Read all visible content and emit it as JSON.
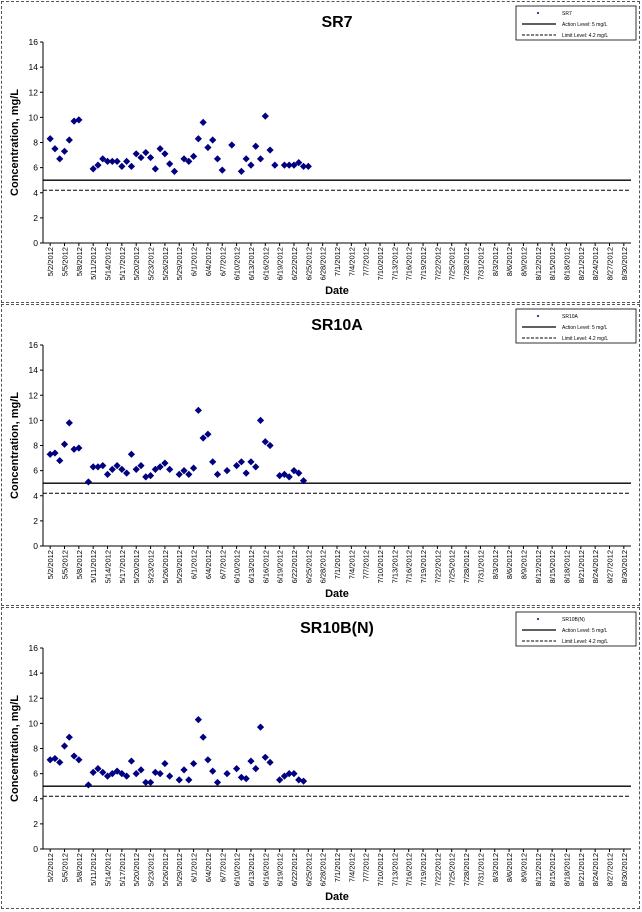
{
  "chart_data": [
    {
      "type": "scatter",
      "title": "SR7",
      "xlabel": "Date",
      "ylabel": "Concentration, mg/L",
      "ylim": [
        0,
        16
      ],
      "yticks": [
        "0",
        "2",
        "4",
        "6",
        "8",
        "10",
        "12",
        "14",
        "16"
      ],
      "legend": [
        "SR7",
        "Action Level: 5 mg/L",
        "Limit Level: 4.2 mg/L"
      ],
      "legend_position": "top-right",
      "x_dates": [
        "5/2/2012",
        "5/5/2012",
        "5/8/2012",
        "5/11/2012",
        "5/14/2012",
        "5/17/2012",
        "5/20/2012",
        "5/23/2012",
        "5/26/2012",
        "5/29/2012",
        "6/1/2012",
        "6/4/2012",
        "6/7/2012",
        "6/10/2012",
        "6/13/2012",
        "6/16/2012",
        "6/19/2012",
        "6/22/2012",
        "6/25/2012",
        "6/28/2012",
        "7/1/2012",
        "7/4/2012",
        "7/7/2012",
        "7/10/2012",
        "7/13/2012",
        "7/16/2012",
        "7/19/2012",
        "7/22/2012",
        "7/25/2012",
        "7/28/2012",
        "7/31/2012",
        "8/3/2012",
        "8/6/2012",
        "8/9/2012",
        "8/12/2012",
        "8/15/2012",
        "8/18/2012",
        "8/21/2012",
        "8/24/2012",
        "8/27/2012",
        "8/30/2012"
      ],
      "action_level": 5,
      "limit_level": 4.2,
      "points": [
        [
          "5/2/2012",
          8.3
        ],
        [
          "5/3/2012",
          7.5
        ],
        [
          "5/4/2012",
          6.7
        ],
        [
          "5/5/2012",
          7.3
        ],
        [
          "5/6/2012",
          8.2
        ],
        [
          "5/7/2012",
          9.7
        ],
        [
          "5/8/2012",
          9.8
        ],
        [
          "5/11/2012",
          5.9
        ],
        [
          "5/12/2012",
          6.2
        ],
        [
          "5/13/2012",
          6.7
        ],
        [
          "5/14/2012",
          6.5
        ],
        [
          "5/15/2012",
          6.5
        ],
        [
          "5/16/2012",
          6.5
        ],
        [
          "5/17/2012",
          6.1
        ],
        [
          "5/18/2012",
          6.5
        ],
        [
          "5/19/2012",
          6.1
        ],
        [
          "5/20/2012",
          7.1
        ],
        [
          "5/21/2012",
          6.8
        ],
        [
          "5/22/2012",
          7.2
        ],
        [
          "5/23/2012",
          6.8
        ],
        [
          "5/24/2012",
          5.9
        ],
        [
          "5/25/2012",
          7.5
        ],
        [
          "5/26/2012",
          7.1
        ],
        [
          "5/27/2012",
          6.3
        ],
        [
          "5/28/2012",
          5.7
        ],
        [
          "5/30/2012",
          6.7
        ],
        [
          "5/31/2012",
          6.5
        ],
        [
          "6/1/2012",
          6.9
        ],
        [
          "6/2/2012",
          8.3
        ],
        [
          "6/3/2012",
          9.6
        ],
        [
          "6/4/2012",
          7.6
        ],
        [
          "6/5/2012",
          8.2
        ],
        [
          "6/6/2012",
          6.7
        ],
        [
          "6/7/2012",
          5.8
        ],
        [
          "6/9/2012",
          7.8
        ],
        [
          "6/11/2012",
          5.7
        ],
        [
          "6/12/2012",
          6.7
        ],
        [
          "6/13/2012",
          6.2
        ],
        [
          "6/14/2012",
          7.7
        ],
        [
          "6/15/2012",
          6.7
        ],
        [
          "6/16/2012",
          10.1
        ],
        [
          "6/17/2012",
          7.4
        ],
        [
          "6/18/2012",
          6.2
        ],
        [
          "6/20/2012",
          6.2
        ],
        [
          "6/21/2012",
          6.2
        ],
        [
          "6/22/2012",
          6.2
        ],
        [
          "6/23/2012",
          6.4
        ],
        [
          "6/24/2012",
          6.1
        ],
        [
          "6/25/2012",
          6.1
        ]
      ]
    },
    {
      "type": "scatter",
      "title": "SR10A",
      "xlabel": "Date",
      "ylabel": "Concentration, mg/L",
      "ylim": [
        0,
        16
      ],
      "yticks": [
        "0",
        "2",
        "4",
        "6",
        "8",
        "10",
        "12",
        "14",
        "16"
      ],
      "legend": [
        "SR10A",
        "Action Level: 5 mg/L",
        "Limit Level: 4.2 mg/L"
      ],
      "legend_position": "top-right",
      "x_dates": [
        "5/2/2012",
        "5/5/2012",
        "5/8/2012",
        "5/11/2012",
        "5/14/2012",
        "5/17/2012",
        "5/20/2012",
        "5/23/2012",
        "5/26/2012",
        "5/29/2012",
        "6/1/2012",
        "6/4/2012",
        "6/7/2012",
        "6/10/2012",
        "6/13/2012",
        "6/16/2012",
        "6/19/2012",
        "6/22/2012",
        "6/25/2012",
        "6/28/2012",
        "7/1/2012",
        "7/4/2012",
        "7/7/2012",
        "7/10/2012",
        "7/13/2012",
        "7/16/2012",
        "7/19/2012",
        "7/22/2012",
        "7/25/2012",
        "7/28/2012",
        "7/31/2012",
        "8/3/2012",
        "8/6/2012",
        "8/9/2012",
        "8/12/2012",
        "8/15/2012",
        "8/18/2012",
        "8/21/2012",
        "8/24/2012",
        "8/27/2012",
        "8/30/2012"
      ],
      "action_level": 5,
      "limit_level": 4.2,
      "points": [
        [
          "5/2/2012",
          7.3
        ],
        [
          "5/3/2012",
          7.4
        ],
        [
          "5/4/2012",
          6.8
        ],
        [
          "5/5/2012",
          8.1
        ],
        [
          "5/6/2012",
          9.8
        ],
        [
          "5/7/2012",
          7.7
        ],
        [
          "5/8/2012",
          7.8
        ],
        [
          "5/10/2012",
          5.1
        ],
        [
          "5/11/2012",
          6.3
        ],
        [
          "5/12/2012",
          6.3
        ],
        [
          "5/13/2012",
          6.4
        ],
        [
          "5/14/2012",
          5.7
        ],
        [
          "5/15/2012",
          6.1
        ],
        [
          "5/16/2012",
          6.4
        ],
        [
          "5/17/2012",
          6.1
        ],
        [
          "5/18/2012",
          5.8
        ],
        [
          "5/19/2012",
          7.3
        ],
        [
          "5/20/2012",
          6.1
        ],
        [
          "5/21/2012",
          6.4
        ],
        [
          "5/22/2012",
          5.5
        ],
        [
          "5/23/2012",
          5.6
        ],
        [
          "5/24/2012",
          6.1
        ],
        [
          "5/25/2012",
          6.3
        ],
        [
          "5/26/2012",
          6.6
        ],
        [
          "5/27/2012",
          6.1
        ],
        [
          "5/29/2012",
          5.7
        ],
        [
          "5/30/2012",
          6.0
        ],
        [
          "5/31/2012",
          5.7
        ],
        [
          "6/1/2012",
          6.2
        ],
        [
          "6/2/2012",
          10.8
        ],
        [
          "6/3/2012",
          8.6
        ],
        [
          "6/4/2012",
          8.9
        ],
        [
          "6/5/2012",
          6.7
        ],
        [
          "6/6/2012",
          5.7
        ],
        [
          "6/8/2012",
          6.0
        ],
        [
          "6/10/2012",
          6.4
        ],
        [
          "6/11/2012",
          6.7
        ],
        [
          "6/12/2012",
          5.8
        ],
        [
          "6/13/2012",
          6.7
        ],
        [
          "6/14/2012",
          6.3
        ],
        [
          "6/15/2012",
          10.0
        ],
        [
          "6/16/2012",
          8.3
        ],
        [
          "6/17/2012",
          8.0
        ],
        [
          "6/19/2012",
          5.6
        ],
        [
          "6/20/2012",
          5.7
        ],
        [
          "6/21/2012",
          5.5
        ],
        [
          "6/22/2012",
          6.0
        ],
        [
          "6/23/2012",
          5.8
        ],
        [
          "6/24/2012",
          5.2
        ]
      ]
    },
    {
      "type": "scatter",
      "title": "SR10B(N)",
      "xlabel": "Date",
      "ylabel": "Concentration, mg/L",
      "ylim": [
        0,
        16
      ],
      "yticks": [
        "0",
        "2",
        "4",
        "6",
        "8",
        "10",
        "12",
        "14",
        "16"
      ],
      "legend": [
        "SR10B(N)",
        "Action Level: 5 mg/L",
        "Limit Level: 4.2 mg/L"
      ],
      "legend_position": "top-right",
      "x_dates": [
        "5/2/2012",
        "5/5/2012",
        "5/8/2012",
        "5/11/2012",
        "5/14/2012",
        "5/17/2012",
        "5/20/2012",
        "5/23/2012",
        "5/26/2012",
        "5/29/2012",
        "6/1/2012",
        "6/4/2012",
        "6/7/2012",
        "6/10/2012",
        "6/13/2012",
        "6/16/2012",
        "6/19/2012",
        "6/22/2012",
        "6/25/2012",
        "6/28/2012",
        "7/1/2012",
        "7/4/2012",
        "7/7/2012",
        "7/10/2012",
        "7/13/2012",
        "7/16/2012",
        "7/19/2012",
        "7/22/2012",
        "7/25/2012",
        "7/28/2012",
        "7/31/2012",
        "8/3/2012",
        "8/6/2012",
        "8/9/2012",
        "8/12/2012",
        "8/15/2012",
        "8/18/2012",
        "8/21/2012",
        "8/24/2012",
        "8/27/2012",
        "8/30/2012"
      ],
      "action_level": 5,
      "limit_level": 4.2,
      "points": [
        [
          "5/2/2012",
          7.1
        ],
        [
          "5/3/2012",
          7.2
        ],
        [
          "5/4/2012",
          6.9
        ],
        [
          "5/5/2012",
          8.2
        ],
        [
          "5/6/2012",
          8.9
        ],
        [
          "5/7/2012",
          7.4
        ],
        [
          "5/8/2012",
          7.1
        ],
        [
          "5/10/2012",
          5.1
        ],
        [
          "5/11/2012",
          6.1
        ],
        [
          "5/12/2012",
          6.4
        ],
        [
          "5/13/2012",
          6.1
        ],
        [
          "5/14/2012",
          5.8
        ],
        [
          "5/15/2012",
          6.0
        ],
        [
          "5/16/2012",
          6.2
        ],
        [
          "5/17/2012",
          6.0
        ],
        [
          "5/18/2012",
          5.8
        ],
        [
          "5/19/2012",
          7.0
        ],
        [
          "5/20/2012",
          6.0
        ],
        [
          "5/21/2012",
          6.3
        ],
        [
          "5/22/2012",
          5.3
        ],
        [
          "5/23/2012",
          5.3
        ],
        [
          "5/24/2012",
          6.1
        ],
        [
          "5/25/2012",
          6.0
        ],
        [
          "5/26/2012",
          6.8
        ],
        [
          "5/27/2012",
          5.8
        ],
        [
          "5/29/2012",
          5.5
        ],
        [
          "5/30/2012",
          6.3
        ],
        [
          "5/31/2012",
          5.5
        ],
        [
          "6/1/2012",
          6.8
        ],
        [
          "6/2/2012",
          10.3
        ],
        [
          "6/3/2012",
          8.9
        ],
        [
          "6/4/2012",
          7.1
        ],
        [
          "6/5/2012",
          6.2
        ],
        [
          "6/6/2012",
          5.3
        ],
        [
          "6/8/2012",
          6.0
        ],
        [
          "6/10/2012",
          6.4
        ],
        [
          "6/11/2012",
          5.7
        ],
        [
          "6/12/2012",
          5.6
        ],
        [
          "6/13/2012",
          7.0
        ],
        [
          "6/14/2012",
          6.4
        ],
        [
          "6/15/2012",
          9.7
        ],
        [
          "6/16/2012",
          7.3
        ],
        [
          "6/17/2012",
          6.9
        ],
        [
          "6/19/2012",
          5.5
        ],
        [
          "6/20/2012",
          5.8
        ],
        [
          "6/21/2012",
          6.0
        ],
        [
          "6/22/2012",
          6.0
        ],
        [
          "6/23/2012",
          5.5
        ],
        [
          "6/24/2012",
          5.4
        ]
      ]
    }
  ],
  "colors": {
    "marker": "#000080",
    "action_line": "#000000",
    "limit_line": "#000000",
    "axis": "#000000"
  }
}
